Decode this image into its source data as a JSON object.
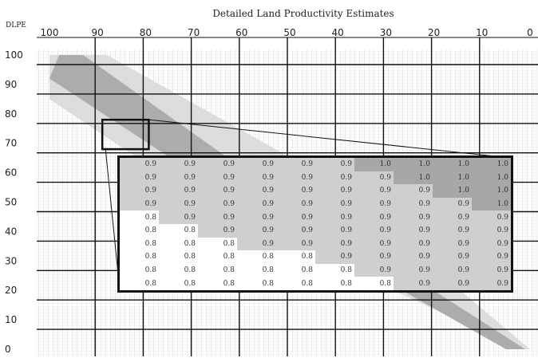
{
  "chart_data": {
    "type": "heatmap",
    "title": "Detailed Land Productivity Estimates",
    "corner_label": "DLPE",
    "x_ticks": [
      "100",
      "90",
      "80",
      "70",
      "60",
      "50",
      "40",
      "30",
      "20",
      "10",
      "0"
    ],
    "y_ticks": [
      "100",
      "90",
      "80",
      "70",
      "60",
      "50",
      "40",
      "30",
      "20",
      "10",
      "0"
    ],
    "xlim": [
      100,
      0
    ],
    "ylim": [
      0,
      100
    ],
    "grid": true,
    "zoom_region": {
      "x": [
        90,
        80
      ],
      "y": [
        78,
        68
      ]
    },
    "inset": {
      "rows": [
        [
          "0.9",
          "0.9",
          "0.9",
          "0.9",
          "0.9",
          "0.9",
          "1.0",
          "1.0",
          "1.0",
          "1.0"
        ],
        [
          "0.9",
          "0.9",
          "0.9",
          "0.9",
          "0.9",
          "0.9",
          "0.9",
          "1.0",
          "1.0",
          "1.0"
        ],
        [
          "0.9",
          "0.9",
          "0.9",
          "0.9",
          "0.9",
          "0.9",
          "0.9",
          "0.9",
          "1.0",
          "1.0"
        ],
        [
          "0.9",
          "0.9",
          "0.9",
          "0.9",
          "0.9",
          "0.9",
          "0.9",
          "0.9",
          "0.9",
          "1.0"
        ],
        [
          "0.8",
          "0.9",
          "0.9",
          "0.9",
          "0.9",
          "0.9",
          "0.9",
          "0.9",
          "0.9",
          "0.9"
        ],
        [
          "0.8",
          "0.8",
          "0.9",
          "0.9",
          "0.9",
          "0.9",
          "0.9",
          "0.9",
          "0.9",
          "0.9"
        ],
        [
          "0.8",
          "0.8",
          "0.8",
          "0.9",
          "0.9",
          "0.9",
          "0.9",
          "0.9",
          "0.9",
          "0.9"
        ],
        [
          "0.8",
          "0.8",
          "0.8",
          "0.8",
          "0.8",
          "0.9",
          "0.9",
          "0.9",
          "0.9",
          "0.9"
        ],
        [
          "0.8",
          "0.8",
          "0.8",
          "0.8",
          "0.8",
          "0.8",
          "0.9",
          "0.9",
          "0.9",
          "0.9"
        ],
        [
          "0.8",
          "0.8",
          "0.8",
          "0.8",
          "0.8",
          "0.8",
          "0.8",
          "0.9",
          "0.9",
          "0.9"
        ]
      ]
    }
  },
  "colors": {
    "value_0_8": "#ffffff",
    "value_0_9": "#cfcfcf",
    "value_1_0": "#a7a7a7",
    "band_light": "#d9d9d9",
    "band_dark": "#a9a9a9",
    "grid": "#111111"
  }
}
